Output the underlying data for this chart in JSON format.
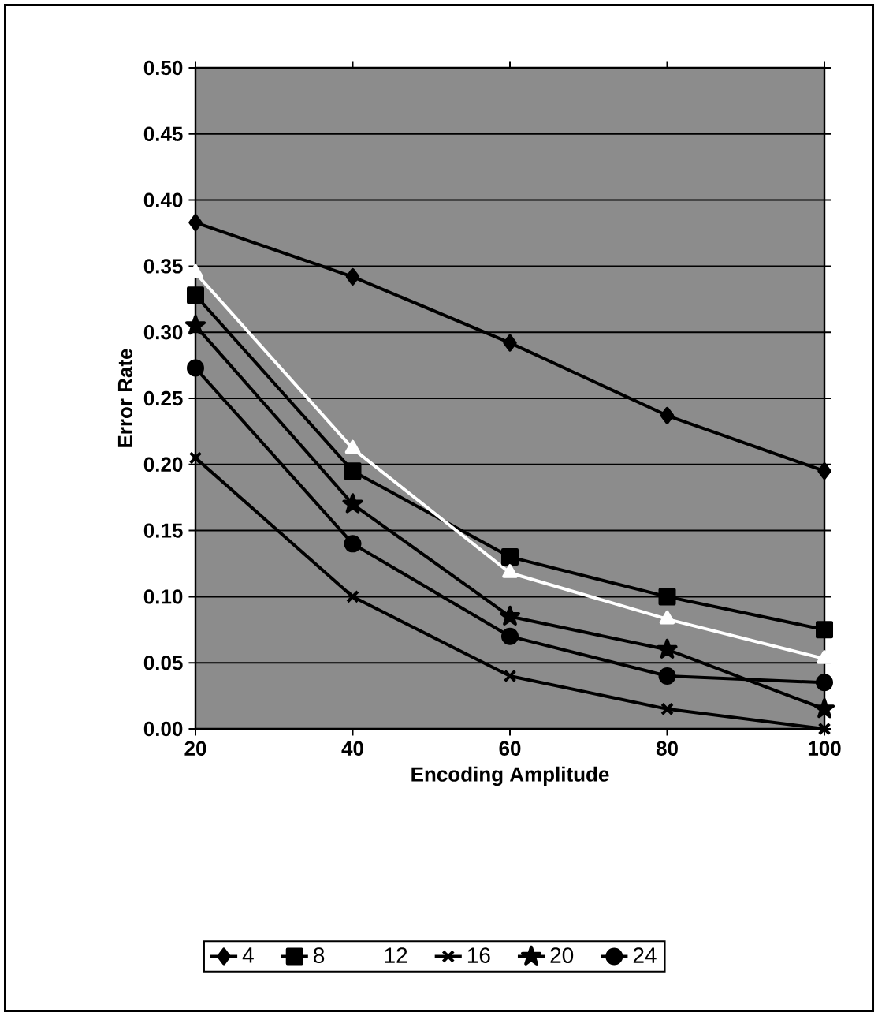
{
  "chart_data": {
    "type": "line",
    "xlabel": "Encoding Amplitude",
    "ylabel": "Error Rate",
    "x": [
      20,
      40,
      60,
      80,
      100
    ],
    "series": [
      {
        "name": "4",
        "color": "#000000",
        "marker": "diamond",
        "values": [
          0.383,
          0.342,
          0.292,
          0.237,
          0.195
        ]
      },
      {
        "name": "8",
        "color": "#000000",
        "marker": "square",
        "values": [
          0.328,
          0.195,
          0.13,
          0.1,
          0.075
        ]
      },
      {
        "name": "12",
        "color": "#ffffff",
        "marker": "triangle",
        "values": [
          0.345,
          0.212,
          0.118,
          0.083,
          0.053
        ]
      },
      {
        "name": "16",
        "color": "#000000",
        "marker": "cross",
        "values": [
          0.205,
          0.1,
          0.04,
          0.015,
          0.0
        ]
      },
      {
        "name": "20",
        "color": "#000000",
        "marker": "star",
        "values": [
          0.305,
          0.17,
          0.085,
          0.06,
          0.015
        ]
      },
      {
        "name": "24",
        "color": "#000000",
        "marker": "circle",
        "values": [
          0.273,
          0.14,
          0.07,
          0.04,
          0.035
        ]
      }
    ],
    "xlim": [
      20,
      100
    ],
    "xticks": [
      20,
      40,
      60,
      80,
      100
    ],
    "ylim": [
      0,
      0.5
    ],
    "yticks": [
      {
        "value": 0,
        "label": "0.00"
      },
      {
        "value": 0.05,
        "label": "0.05"
      },
      {
        "value": 0.1,
        "label": "0.10"
      },
      {
        "value": 0.15,
        "label": "0.15"
      },
      {
        "value": 0.2,
        "label": "0.20"
      },
      {
        "value": 0.25,
        "label": "0.25"
      },
      {
        "value": 0.3,
        "label": "0.30"
      },
      {
        "value": 0.35,
        "label": "0.35"
      },
      {
        "value": 0.4,
        "label": "0.40"
      },
      {
        "value": 0.45,
        "label": "0.45"
      },
      {
        "value": 0.5,
        "label": "0.50"
      }
    ],
    "grid": "y",
    "legend": "bottom",
    "line_style": "solid"
  }
}
